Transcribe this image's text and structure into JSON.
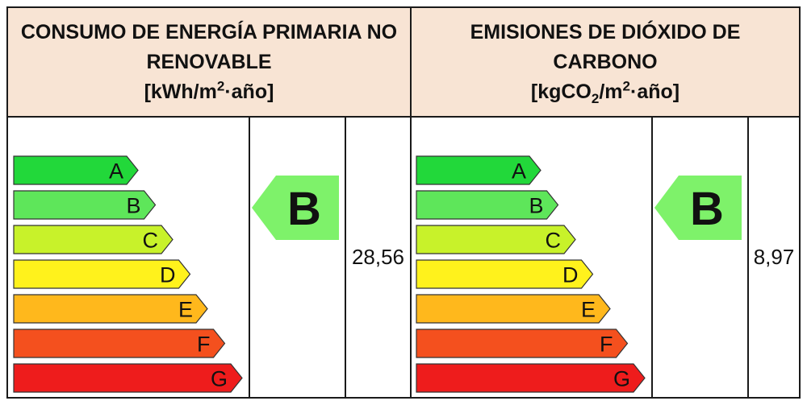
{
  "panels": [
    {
      "title_line1": "CONSUMO DE ENERGÍA PRIMARIA NO",
      "title_line2": "RENOVABLE",
      "unit_open": "[kWh/m",
      "unit_sup": "2",
      "unit_close": "·año]",
      "scale": [
        "A",
        "B",
        "C",
        "D",
        "E",
        "F",
        "G"
      ],
      "rating": "B",
      "value": "28,56"
    },
    {
      "title_line1": "EMISIONES DE DIÓXIDO DE",
      "title_line2": "CARBONO",
      "unit_open": "[kgCO",
      "unit_sub": "2",
      "unit_mid": "/m",
      "unit_sup": "2",
      "unit_close": "·año]",
      "scale": [
        "A",
        "B",
        "C",
        "D",
        "E",
        "F",
        "G"
      ],
      "rating": "B",
      "value": "8,97"
    }
  ],
  "colors": {
    "header_bg": "#f8e4d4",
    "scale": [
      "#22d83a",
      "#5ee65a",
      "#c8f22a",
      "#fff21c",
      "#ffb81c",
      "#f4501e",
      "#ee1c1c"
    ],
    "rating_arrow": "#7ef26a",
    "border": "#1a1a1a"
  }
}
